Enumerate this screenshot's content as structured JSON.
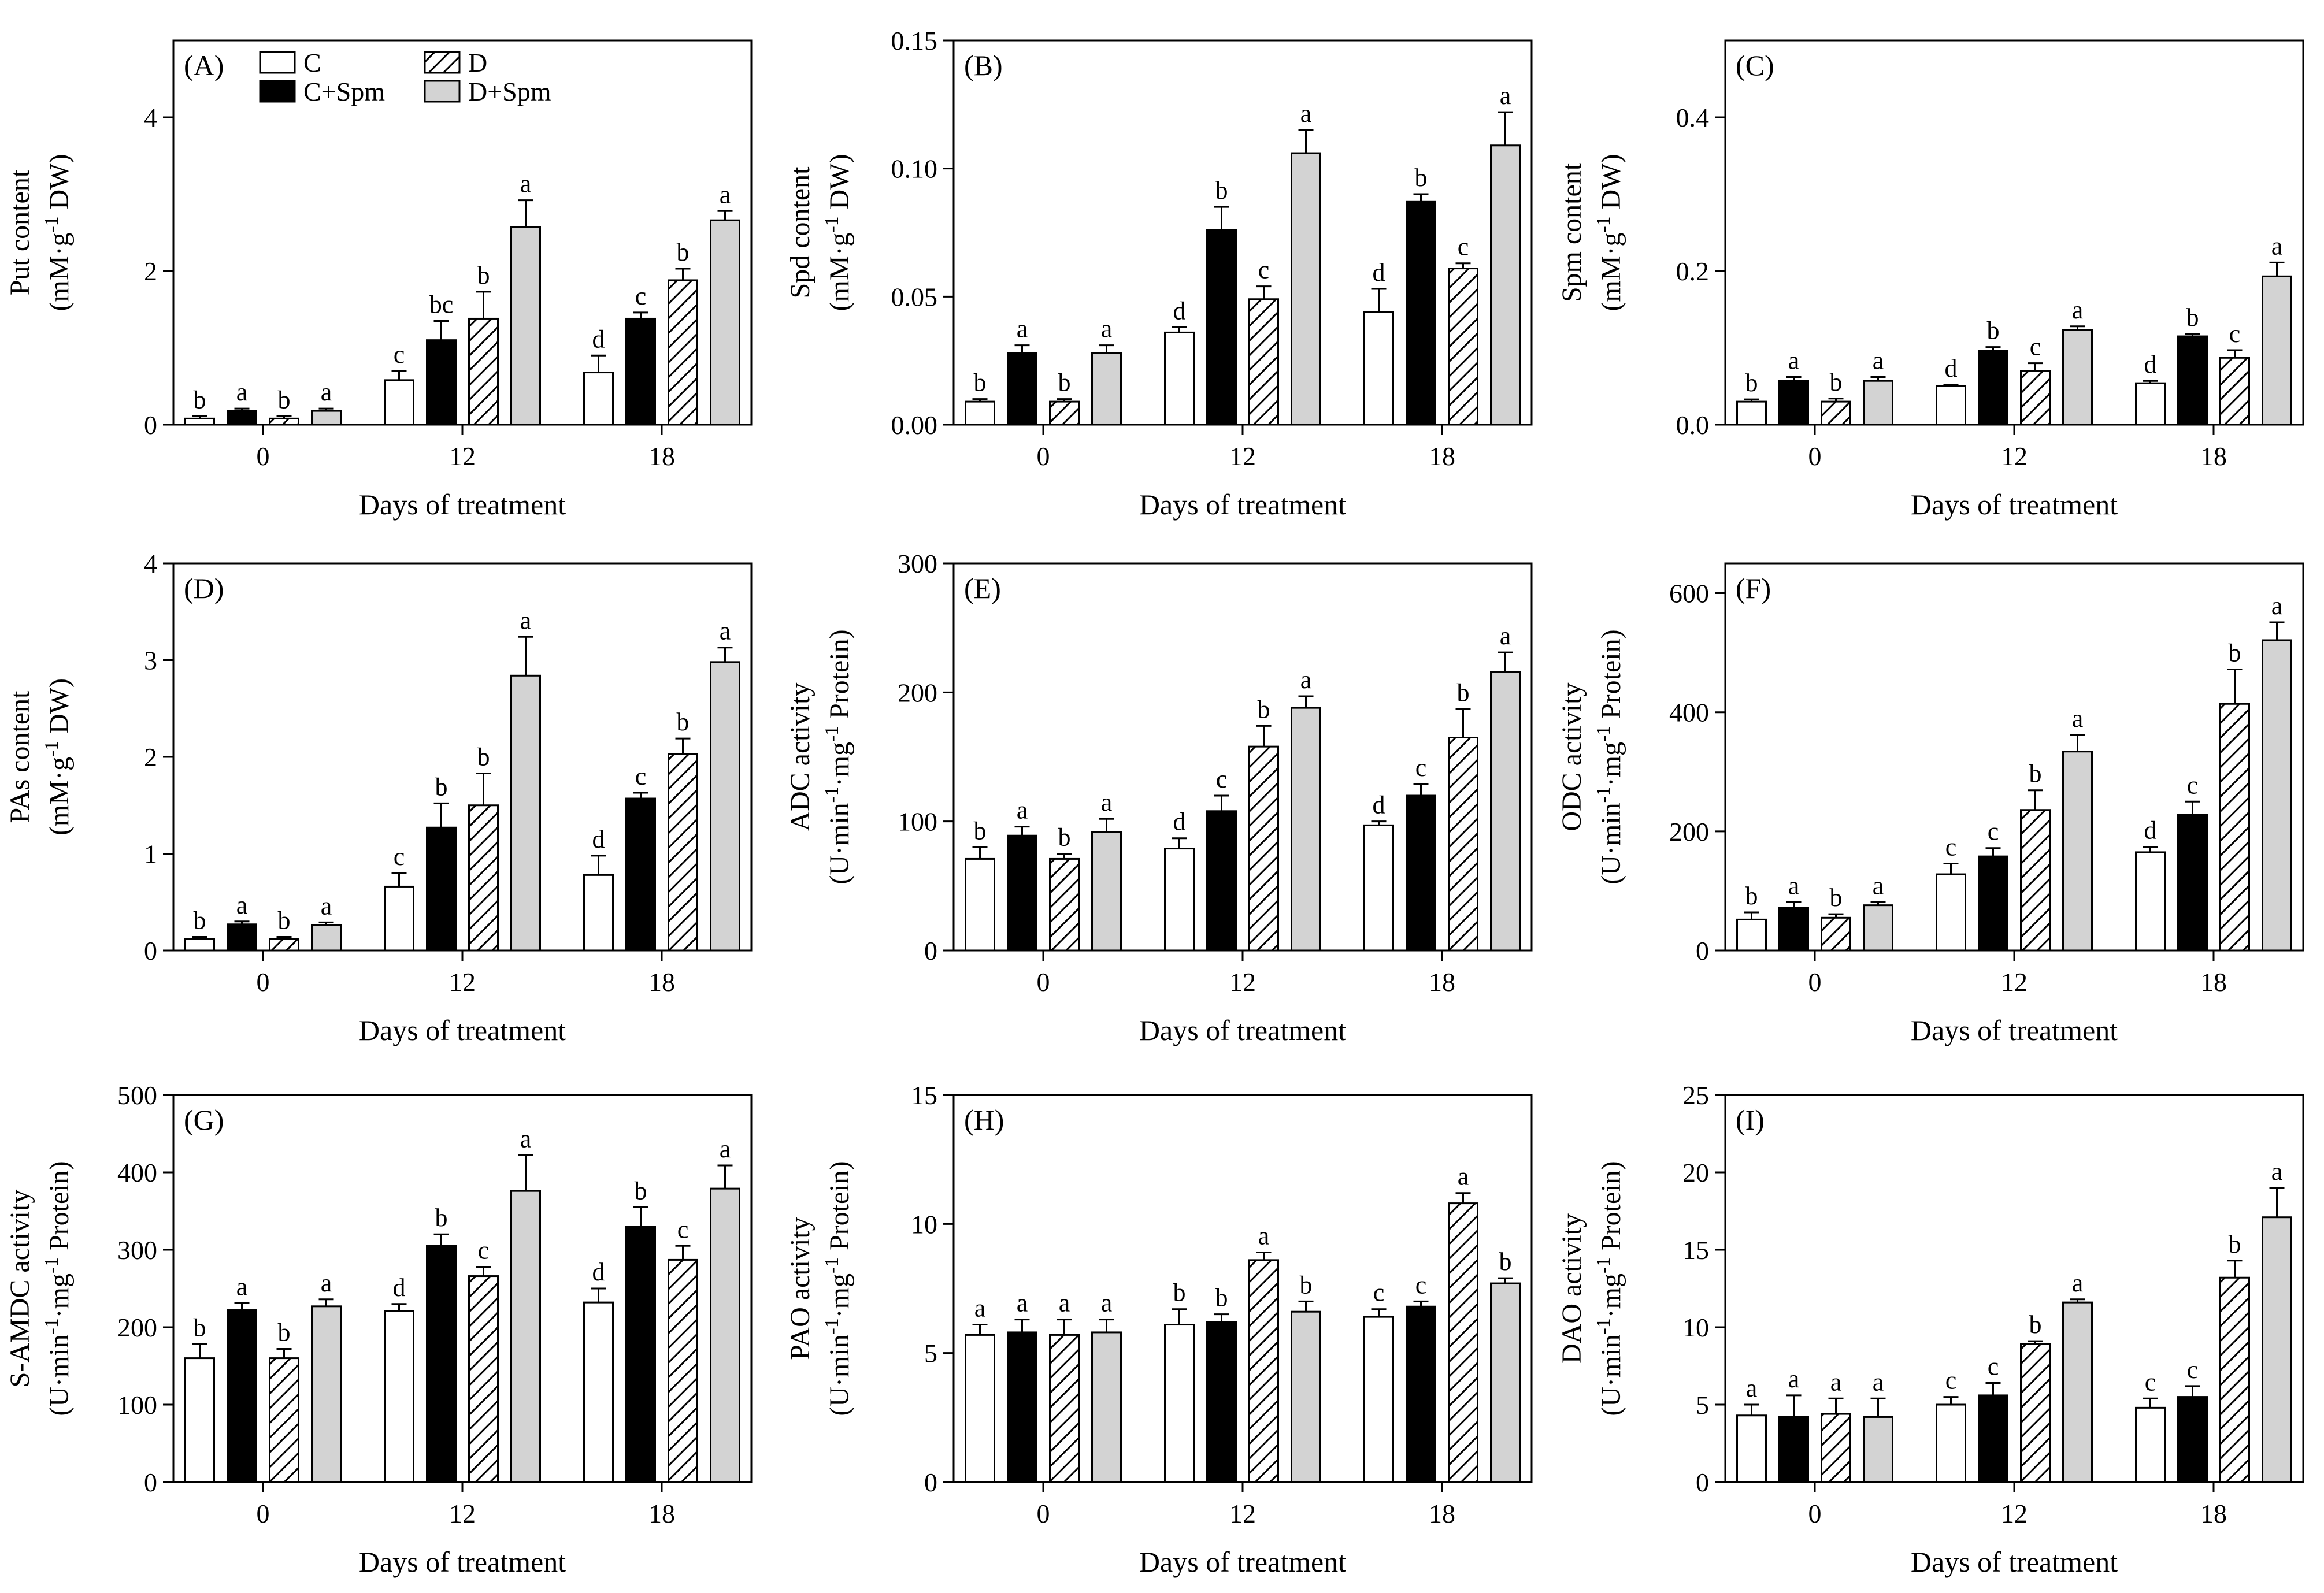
{
  "colors": {
    "ink": "#000000",
    "c_fill": "#ffffff",
    "cspm_fill": "#000000",
    "d_hatch": "#000000",
    "dspm_fill": "#d3d3d3"
  },
  "legend": {
    "items": [
      "C",
      "C+Spm",
      "D",
      "D+Spm"
    ]
  },
  "chart_data": [
    {
      "type": "bar",
      "panel": "(A)",
      "ylabel_lines": [
        "Put content",
        "(mM·g-1 DW)"
      ],
      "xlabel": "Days of treatment",
      "categories": [
        "0",
        "12",
        "18"
      ],
      "ylim": [
        0,
        5
      ],
      "yticks": [
        0,
        2,
        4
      ],
      "yticks_text": [
        "0",
        "2",
        "4"
      ],
      "series": [
        {
          "name": "C",
          "values": [
            0.08,
            0.58,
            0.68
          ],
          "errors": [
            0.03,
            0.12,
            0.22
          ],
          "letters": [
            "b",
            "c",
            "d"
          ]
        },
        {
          "name": "C+Spm",
          "values": [
            0.18,
            1.1,
            1.38
          ],
          "errors": [
            0.03,
            0.25,
            0.08
          ],
          "letters": [
            "a",
            "bc",
            "c"
          ]
        },
        {
          "name": "D",
          "values": [
            0.08,
            1.38,
            1.88
          ],
          "errors": [
            0.03,
            0.35,
            0.15
          ],
          "letters": [
            "b",
            "b",
            "b"
          ]
        },
        {
          "name": "D+Spm",
          "values": [
            0.18,
            2.57,
            2.66
          ],
          "errors": [
            0.03,
            0.35,
            0.12
          ],
          "letters": [
            "a",
            "a",
            "a"
          ]
        }
      ]
    },
    {
      "type": "bar",
      "panel": "(B)",
      "ylabel_lines": [
        "Spd content",
        "(mM·g-1 DW)"
      ],
      "xlabel": "Days of treatment",
      "categories": [
        "0",
        "12",
        "18"
      ],
      "ylim": [
        0,
        0.15
      ],
      "yticks": [
        0,
        0.05,
        0.1,
        0.15
      ],
      "yticks_text": [
        "0.00",
        "0.05",
        "0.10",
        "0.15"
      ],
      "series": [
        {
          "name": "C",
          "values": [
            0.009,
            0.036,
            0.044
          ],
          "errors": [
            0.001,
            0.002,
            0.009
          ],
          "letters": [
            "b",
            "d",
            "d"
          ]
        },
        {
          "name": "C+Spm",
          "values": [
            0.028,
            0.076,
            0.087
          ],
          "errors": [
            0.003,
            0.009,
            0.003
          ],
          "letters": [
            "a",
            "b",
            "b"
          ]
        },
        {
          "name": "D",
          "values": [
            0.009,
            0.049,
            0.061
          ],
          "errors": [
            0.001,
            0.005,
            0.002
          ],
          "letters": [
            "b",
            "c",
            "c"
          ]
        },
        {
          "name": "D+Spm",
          "values": [
            0.028,
            0.106,
            0.109
          ],
          "errors": [
            0.003,
            0.009,
            0.013
          ],
          "letters": [
            "a",
            "a",
            "a"
          ]
        }
      ]
    },
    {
      "type": "bar",
      "panel": "(C)",
      "ylabel_lines": [
        "Spm content",
        "(mM·g-1 DW)"
      ],
      "xlabel": "Days of treatment",
      "categories": [
        "0",
        "12",
        "18"
      ],
      "ylim": [
        0,
        0.5
      ],
      "yticks": [
        0,
        0.2,
        0.4
      ],
      "yticks_text": [
        "0.0",
        "0.2",
        "0.4"
      ],
      "series": [
        {
          "name": "C",
          "values": [
            0.03,
            0.05,
            0.054
          ],
          "errors": [
            0.003,
            0.002,
            0.003
          ],
          "letters": [
            "b",
            "d",
            "d"
          ]
        },
        {
          "name": "C+Spm",
          "values": [
            0.057,
            0.096,
            0.115
          ],
          "errors": [
            0.005,
            0.005,
            0.003
          ],
          "letters": [
            "a",
            "b",
            "b"
          ]
        },
        {
          "name": "D",
          "values": [
            0.03,
            0.07,
            0.087
          ],
          "errors": [
            0.004,
            0.01,
            0.01
          ],
          "letters": [
            "b",
            "c",
            "c"
          ]
        },
        {
          "name": "D+Spm",
          "values": [
            0.057,
            0.123,
            0.193
          ],
          "errors": [
            0.005,
            0.005,
            0.018
          ],
          "letters": [
            "a",
            "a",
            "a"
          ]
        }
      ]
    },
    {
      "type": "bar",
      "panel": "(D)",
      "ylabel_lines": [
        "PAs content",
        "(mM·g-1 DW)"
      ],
      "xlabel": "Days of treatment",
      "categories": [
        "0",
        "12",
        "18"
      ],
      "ylim": [
        0,
        4
      ],
      "yticks": [
        0,
        1,
        2,
        3,
        4
      ],
      "yticks_text": [
        "0",
        "1",
        "2",
        "3",
        "4"
      ],
      "series": [
        {
          "name": "C",
          "values": [
            0.12,
            0.66,
            0.78
          ],
          "errors": [
            0.02,
            0.14,
            0.2
          ],
          "letters": [
            "b",
            "c",
            "d"
          ]
        },
        {
          "name": "C+Spm",
          "values": [
            0.27,
            1.27,
            1.57
          ],
          "errors": [
            0.03,
            0.25,
            0.06
          ],
          "letters": [
            "a",
            "b",
            "c"
          ]
        },
        {
          "name": "D",
          "values": [
            0.12,
            1.5,
            2.03
          ],
          "errors": [
            0.02,
            0.33,
            0.16
          ],
          "letters": [
            "b",
            "b",
            "b"
          ]
        },
        {
          "name": "D+Spm",
          "values": [
            0.26,
            2.84,
            2.98
          ],
          "errors": [
            0.03,
            0.4,
            0.15
          ],
          "letters": [
            "a",
            "a",
            "a"
          ]
        }
      ]
    },
    {
      "type": "bar",
      "panel": "(E)",
      "ylabel_lines": [
        "ADC activity",
        "(U·min-1·mg-1 Protein)"
      ],
      "xlabel": "Days of treatment",
      "categories": [
        "0",
        "12",
        "18"
      ],
      "ylim": [
        0,
        300
      ],
      "yticks": [
        0,
        100,
        200,
        300
      ],
      "yticks_text": [
        "0",
        "100",
        "200",
        "300"
      ],
      "series": [
        {
          "name": "C",
          "values": [
            71,
            79,
            97
          ],
          "errors": [
            9,
            8,
            3
          ],
          "letters": [
            "b",
            "d",
            "d"
          ]
        },
        {
          "name": "C+Spm",
          "values": [
            89,
            108,
            120
          ],
          "errors": [
            7,
            12,
            9
          ],
          "letters": [
            "a",
            "c",
            "c"
          ]
        },
        {
          "name": "D",
          "values": [
            71,
            158,
            165
          ],
          "errors": [
            4,
            16,
            22
          ],
          "letters": [
            "b",
            "b",
            "b"
          ]
        },
        {
          "name": "D+Spm",
          "values": [
            92,
            188,
            216
          ],
          "errors": [
            10,
            9,
            15
          ],
          "letters": [
            "a",
            "a",
            "a"
          ]
        }
      ]
    },
    {
      "type": "bar",
      "panel": "(F)",
      "ylabel_lines": [
        "ODC activity",
        "(U·min-1·mg-1 Protein)"
      ],
      "xlabel": "Days of treatment",
      "categories": [
        "0",
        "12",
        "18"
      ],
      "ylim": [
        0,
        650
      ],
      "yticks": [
        0,
        200,
        400,
        600
      ],
      "yticks_text": [
        "0",
        "200",
        "400",
        "600"
      ],
      "series": [
        {
          "name": "C",
          "values": [
            52,
            128,
            165
          ],
          "errors": [
            12,
            18,
            9
          ],
          "letters": [
            "b",
            "c",
            "d"
          ]
        },
        {
          "name": "C+Spm",
          "values": [
            72,
            158,
            228
          ],
          "errors": [
            9,
            14,
            22
          ],
          "letters": [
            "a",
            "c",
            "c"
          ]
        },
        {
          "name": "D",
          "values": [
            55,
            236,
            414
          ],
          "errors": [
            6,
            33,
            58
          ],
          "letters": [
            "b",
            "b",
            "b"
          ]
        },
        {
          "name": "D+Spm",
          "values": [
            76,
            334,
            521
          ],
          "errors": [
            5,
            28,
            30
          ],
          "letters": [
            "a",
            "a",
            "a"
          ]
        }
      ]
    },
    {
      "type": "bar",
      "panel": "(G)",
      "ylabel_lines": [
        "S-AMDC activity",
        "(U·min-1·mg-1 Protein)"
      ],
      "xlabel": "Days of treatment",
      "categories": [
        "0",
        "12",
        "18"
      ],
      "ylim": [
        0,
        500
      ],
      "yticks": [
        0,
        100,
        200,
        300,
        400,
        500
      ],
      "yticks_text": [
        "0",
        "100",
        "200",
        "300",
        "400",
        "500"
      ],
      "series": [
        {
          "name": "C",
          "values": [
            160,
            221,
            232
          ],
          "errors": [
            18,
            9,
            18
          ],
          "letters": [
            "b",
            "d",
            "d"
          ]
        },
        {
          "name": "C+Spm",
          "values": [
            222,
            305,
            330
          ],
          "errors": [
            9,
            15,
            25
          ],
          "letters": [
            "a",
            "b",
            "b"
          ]
        },
        {
          "name": "D",
          "values": [
            160,
            266,
            287
          ],
          "errors": [
            12,
            12,
            18
          ],
          "letters": [
            "b",
            "c",
            "c"
          ]
        },
        {
          "name": "D+Spm",
          "values": [
            227,
            376,
            379
          ],
          "errors": [
            9,
            46,
            30
          ],
          "letters": [
            "a",
            "a",
            "a"
          ]
        }
      ]
    },
    {
      "type": "bar",
      "panel": "(H)",
      "ylabel_lines": [
        "PAO activity",
        "(U·min-1·mg-1 Protein)"
      ],
      "xlabel": "Days of treatment",
      "categories": [
        "0",
        "12",
        "18"
      ],
      "ylim": [
        0,
        15
      ],
      "yticks": [
        0,
        5,
        10,
        15
      ],
      "yticks_text": [
        "0",
        "5",
        "10",
        "15"
      ],
      "series": [
        {
          "name": "C",
          "values": [
            5.7,
            6.1,
            6.4
          ],
          "errors": [
            0.4,
            0.6,
            0.3
          ],
          "letters": [
            "a",
            "b",
            "c"
          ]
        },
        {
          "name": "C+Spm",
          "values": [
            5.8,
            6.2,
            6.8
          ],
          "errors": [
            0.5,
            0.3,
            0.2
          ],
          "letters": [
            "a",
            "b",
            "c"
          ]
        },
        {
          "name": "D",
          "values": [
            5.7,
            8.6,
            10.8
          ],
          "errors": [
            0.6,
            0.3,
            0.4
          ],
          "letters": [
            "a",
            "a",
            "a"
          ]
        },
        {
          "name": "D+Spm",
          "values": [
            5.8,
            6.6,
            7.7
          ],
          "errors": [
            0.5,
            0.4,
            0.2
          ],
          "letters": [
            "a",
            "b",
            "b"
          ]
        }
      ]
    },
    {
      "type": "bar",
      "panel": "(I)",
      "ylabel_lines": [
        "DAO activity",
        "(U·min-1·mg-1 Protein)"
      ],
      "xlabel": "Days of treatment",
      "categories": [
        "0",
        "12",
        "18"
      ],
      "ylim": [
        0,
        25
      ],
      "yticks": [
        0,
        5,
        10,
        15,
        20,
        25
      ],
      "yticks_text": [
        "0",
        "5",
        "10",
        "15",
        "20",
        "25"
      ],
      "series": [
        {
          "name": "C",
          "values": [
            4.3,
            5.0,
            4.8
          ],
          "errors": [
            0.7,
            0.5,
            0.6
          ],
          "letters": [
            "a",
            "c",
            "c"
          ]
        },
        {
          "name": "C+Spm",
          "values": [
            4.2,
            5.6,
            5.5
          ],
          "errors": [
            1.4,
            0.8,
            0.7
          ],
          "letters": [
            "a",
            "c",
            "c"
          ]
        },
        {
          "name": "D",
          "values": [
            4.4,
            8.9,
            13.2
          ],
          "errors": [
            1.0,
            0.2,
            1.1
          ],
          "letters": [
            "a",
            "b",
            "b"
          ]
        },
        {
          "name": "D+Spm",
          "values": [
            4.2,
            11.6,
            17.1
          ],
          "errors": [
            1.2,
            0.2,
            1.9
          ],
          "letters": [
            "a",
            "a",
            "a"
          ]
        }
      ]
    }
  ]
}
